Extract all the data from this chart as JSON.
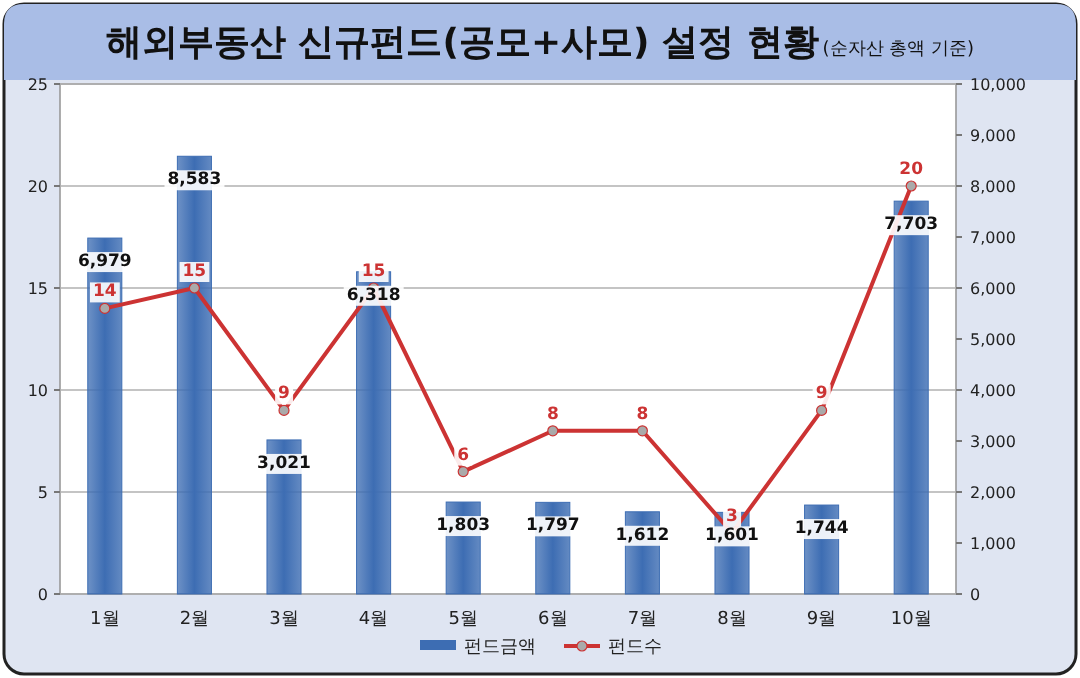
{
  "chart_data": {
    "type": "bar",
    "title": "해외부동산 신규펀드(공모+사모) 설정 현황",
    "subtitle": "(순자산 총액 기준)",
    "categories": [
      "1월",
      "2월",
      "3월",
      "4월",
      "5월",
      "6월",
      "7월",
      "8월",
      "9월",
      "10월"
    ],
    "series": [
      {
        "name": "펀드금액",
        "axis": "y2",
        "color": "#3d6db3",
        "values": [
          6979,
          8583,
          3021,
          6318,
          1803,
          1797,
          1612,
          1601,
          1744,
          7703
        ],
        "value_labels": [
          "6,979",
          "8,583",
          "3,021",
          "6,318",
          "1,803",
          "1,797",
          "1,612",
          "1,601",
          "1,744",
          "7,703"
        ]
      },
      {
        "name": "펀드수",
        "type": "line",
        "color": "#cc3333",
        "values": [
          14,
          15,
          9,
          15,
          6,
          8,
          8,
          3,
          9,
          20
        ],
        "value_labels": [
          "14",
          "15",
          "9",
          "15",
          "6",
          "8",
          "8",
          "3",
          "9",
          "20"
        ]
      }
    ],
    "ylim": [
      0,
      25
    ],
    "yticks": [
      0,
      5,
      10,
      15,
      20,
      25
    ],
    "y2lim": [
      0,
      10000
    ],
    "y2ticks": [
      0,
      {
        "value": 1000,
        "label": "1,000"
      },
      {
        "value": 2000,
        "label": "2,000"
      },
      {
        "value": 3000,
        "label": "3,000"
      },
      {
        "value": 4000,
        "label": "4,000"
      },
      {
        "value": 5000,
        "label": "5,000"
      },
      {
        "value": 6000,
        "label": "6,000"
      },
      {
        "value": 7000,
        "label": "7,000"
      },
      {
        "value": 8000,
        "label": "8,000"
      },
      {
        "value": 9000,
        "label": "9,000"
      },
      {
        "value": 10000,
        "label": "10,000"
      }
    ],
    "grid": "y",
    "legend": "bottom",
    "marker": "circle",
    "line_style": "solid"
  }
}
